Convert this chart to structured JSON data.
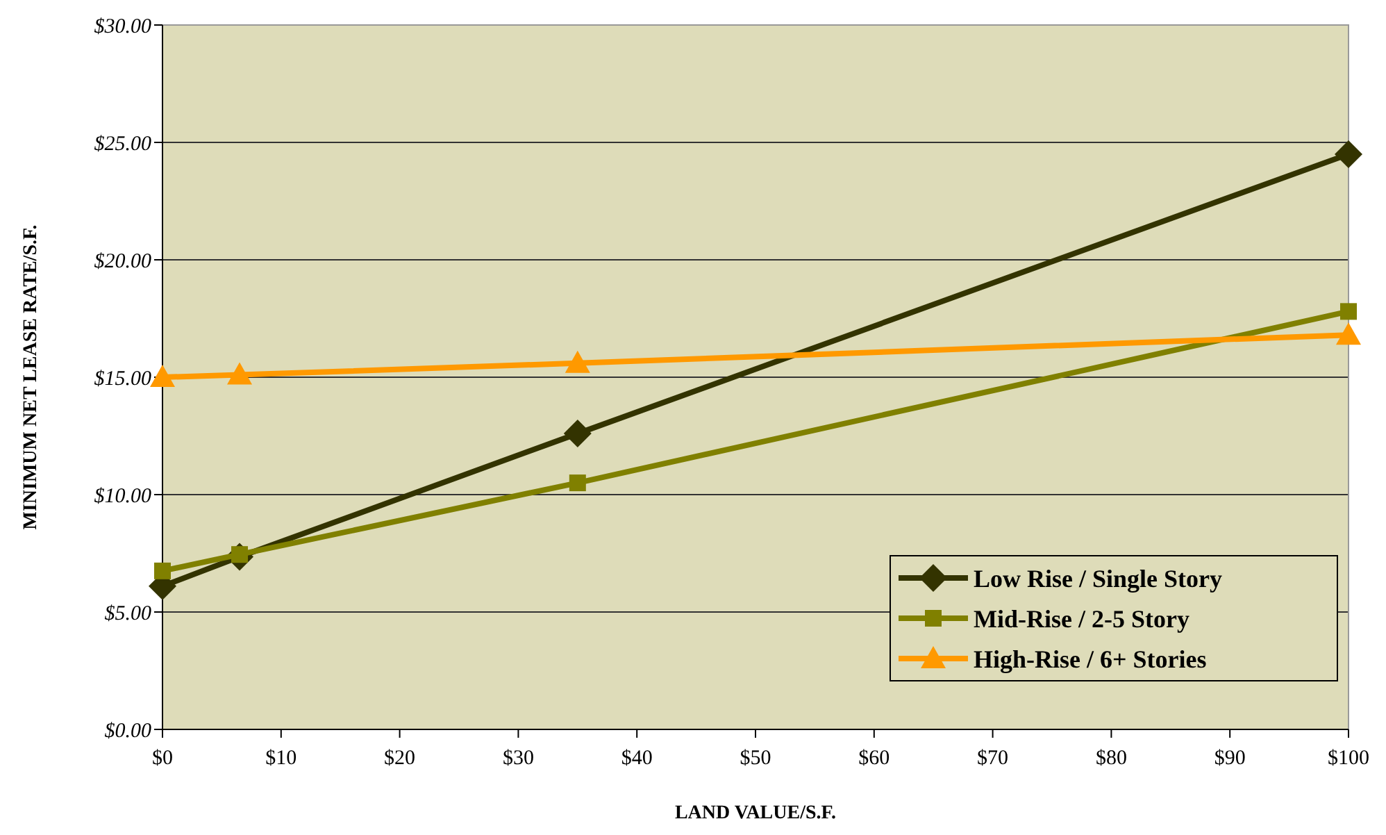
{
  "chart_data": {
    "type": "line",
    "xlabel": "LAND VALUE/S.F.",
    "ylabel": "MINIMUM NET LEASE RATE/S.F.",
    "x": [
      0,
      6.5,
      35,
      100
    ],
    "series": [
      {
        "name": "Low Rise / Single Story",
        "color": "#333300",
        "marker": "diamond",
        "values": [
          6.1,
          7.35,
          12.6,
          24.5
        ]
      },
      {
        "name": "Mid-Rise / 2-5 Story",
        "color": "#808000",
        "marker": "square",
        "values": [
          6.75,
          7.45,
          10.5,
          17.8
        ]
      },
      {
        "name": "High-Rise / 6+ Stories",
        "color": "#ff9900",
        "marker": "triangle",
        "values": [
          15.0,
          15.1,
          15.6,
          16.8
        ]
      }
    ],
    "xlim": [
      0,
      100
    ],
    "xticks": [
      {
        "value": 0,
        "label": "$0"
      },
      {
        "value": 10,
        "label": "$10"
      },
      {
        "value": 20,
        "label": "$20"
      },
      {
        "value": 30,
        "label": "$30"
      },
      {
        "value": 40,
        "label": "$40"
      },
      {
        "value": 50,
        "label": "$50"
      },
      {
        "value": 60,
        "label": "$60"
      },
      {
        "value": 70,
        "label": "$70"
      },
      {
        "value": 80,
        "label": "$80"
      },
      {
        "value": 90,
        "label": "$90"
      },
      {
        "value": 100,
        "label": "$100"
      }
    ],
    "ylim": [
      0,
      30
    ],
    "yticks": [
      {
        "value": 0,
        "label": "$0.00"
      },
      {
        "value": 5,
        "label": "$5.00"
      },
      {
        "value": 10,
        "label": "$10.00"
      },
      {
        "value": 15,
        "label": "$15.00"
      },
      {
        "value": 20,
        "label": "$20.00"
      },
      {
        "value": 25,
        "label": "$25.00"
      },
      {
        "value": 30,
        "label": "$30.00"
      }
    ],
    "grid": "y",
    "legend": "bottom right",
    "line_style": "solid"
  }
}
